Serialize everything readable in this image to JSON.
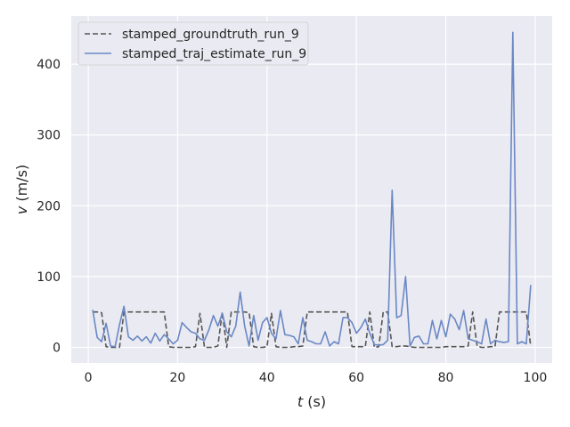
{
  "chart_data": {
    "type": "line",
    "xlabel_var": "t",
    "xlabel_unit": " (s)",
    "ylabel_var": "v",
    "ylabel_unit": " (m/s)",
    "xlim": [
      -3.8,
      103.8
    ],
    "ylim": [
      -22,
      468
    ],
    "xticks": [
      0,
      20,
      40,
      60,
      80,
      100
    ],
    "yticks": [
      0,
      100,
      200,
      300,
      400
    ],
    "grid": true,
    "legend_position": "top-left",
    "background": "#eaeaf2",
    "series": [
      {
        "name": "stamped_groundtruth_run_9",
        "color": "#555555",
        "style": "dashed",
        "x": [
          1,
          2,
          3,
          4,
          5,
          6,
          7,
          8,
          9,
          10,
          11,
          12,
          13,
          14,
          15,
          16,
          17,
          18,
          19,
          20,
          21,
          22,
          23,
          24,
          25,
          26,
          27,
          28,
          29,
          30,
          31,
          32,
          33,
          34,
          35,
          36,
          37,
          38,
          39,
          40,
          41,
          42,
          43,
          44,
          45,
          46,
          47,
          48,
          49,
          50,
          51,
          52,
          53,
          54,
          55,
          56,
          57,
          58,
          59,
          60,
          61,
          62,
          63,
          64,
          65,
          66,
          67,
          68,
          69,
          70,
          71,
          72,
          73,
          74,
          75,
          76,
          77,
          78,
          79,
          80,
          81,
          82,
          83,
          84,
          85,
          86,
          87,
          88,
          89,
          90,
          91,
          92,
          93,
          94,
          95,
          96,
          97,
          98,
          99
        ],
        "y": [
          50,
          50,
          49,
          1,
          0,
          0,
          0,
          50,
          50,
          50,
          50,
          50,
          50,
          50,
          50,
          50,
          50,
          1,
          0,
          0,
          0,
          0,
          0,
          1,
          48,
          0,
          0,
          0,
          2,
          50,
          0,
          50,
          50,
          50,
          50,
          49,
          1,
          0,
          0,
          1,
          48,
          1,
          0,
          0,
          0,
          1,
          1,
          2,
          50,
          50,
          50,
          50,
          50,
          50,
          50,
          50,
          50,
          50,
          1,
          1,
          1,
          1,
          50,
          0,
          1,
          50,
          50,
          1,
          1,
          2,
          2,
          1,
          0,
          0,
          0,
          0,
          0,
          0,
          0,
          1,
          1,
          1,
          1,
          1,
          2,
          50,
          2,
          0,
          0,
          1,
          1,
          50,
          50,
          50,
          50,
          50,
          50,
          50,
          2
        ]
      },
      {
        "name": "stamped_traj_estimate_run_9",
        "color": "#6a88c4",
        "style": "solid",
        "x": [
          1,
          2,
          3,
          4,
          5,
          6,
          7,
          8,
          9,
          10,
          11,
          12,
          13,
          14,
          15,
          16,
          17,
          18,
          19,
          20,
          21,
          22,
          23,
          24,
          25,
          26,
          27,
          28,
          29,
          30,
          31,
          32,
          33,
          34,
          35,
          36,
          37,
          38,
          39,
          40,
          41,
          42,
          43,
          44,
          45,
          46,
          47,
          48,
          49,
          50,
          51,
          52,
          53,
          54,
          55,
          56,
          57,
          58,
          59,
          60,
          61,
          62,
          63,
          64,
          65,
          66,
          67,
          68,
          69,
          70,
          71,
          72,
          73,
          74,
          75,
          76,
          77,
          78,
          79,
          80,
          81,
          82,
          83,
          84,
          85,
          86,
          87,
          88,
          89,
          90,
          91,
          92,
          93,
          94,
          95,
          96,
          97,
          98,
          99
        ],
        "y": [
          53,
          14,
          8,
          34,
          2,
          1,
          32,
          58,
          15,
          10,
          16,
          9,
          15,
          6,
          20,
          9,
          18,
          12,
          5,
          10,
          35,
          28,
          22,
          20,
          12,
          10,
          25,
          45,
          30,
          48,
          22,
          15,
          30,
          78,
          30,
          2,
          45,
          10,
          35,
          42,
          20,
          12,
          52,
          18,
          17,
          15,
          5,
          42,
          10,
          8,
          5,
          5,
          22,
          2,
          8,
          5,
          42,
          42,
          35,
          20,
          28,
          40,
          20,
          4,
          3,
          4,
          10,
          222,
          42,
          45,
          100,
          2,
          14,
          16,
          5,
          5,
          38,
          12,
          38,
          15,
          47,
          40,
          25,
          52,
          12,
          10,
          8,
          5,
          40,
          5,
          10,
          8,
          7,
          8,
          445,
          5,
          8,
          5,
          88
        ]
      }
    ]
  }
}
